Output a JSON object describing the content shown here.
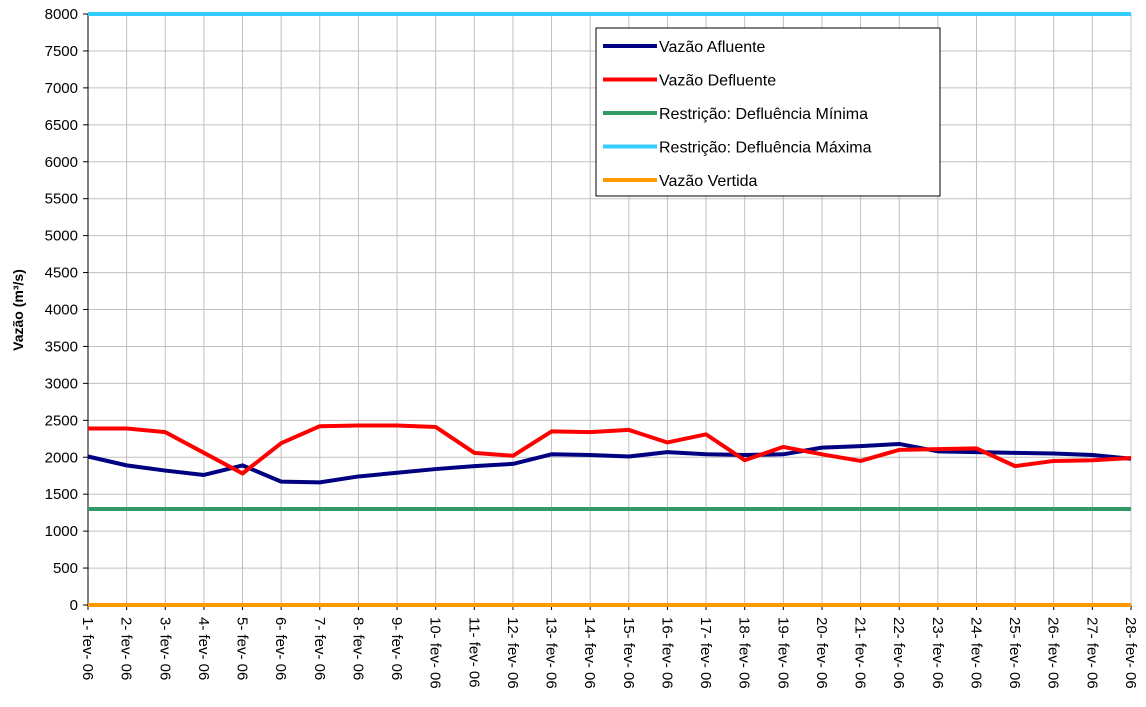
{
  "chart_data": {
    "type": "line",
    "title": "",
    "xlabel": "",
    "ylabel": "Vazão (m³/s)",
    "ylim": [
      0,
      8000
    ],
    "yticks": [
      0,
      500,
      1000,
      1500,
      2000,
      2500,
      3000,
      3500,
      4000,
      4500,
      5000,
      5500,
      6000,
      6500,
      7000,
      7500,
      8000
    ],
    "grid": true,
    "legend_position": "top-right",
    "categories": [
      "1- fev- 06",
      "2- fev- 06",
      "3- fev- 06",
      "4- fev- 06",
      "5- fev- 06",
      "6- fev- 06",
      "7- fev- 06",
      "8- fev- 06",
      "9- fev- 06",
      "10- fev- 06",
      "11- fev- 06",
      "12- fev- 06",
      "13- fev- 06",
      "14- fev- 06",
      "15- fev- 06",
      "16- fev- 06",
      "17- fev- 06",
      "18- fev- 06",
      "19- fev- 06",
      "20- fev- 06",
      "21- fev- 06",
      "22- fev- 06",
      "23- fev- 06",
      "24- fev- 06",
      "25- fev- 06",
      "26- fev- 06",
      "27- fev- 06",
      "28- fev- 06"
    ],
    "series": [
      {
        "name": "Vazão Afluente",
        "color": "#000080",
        "values": [
          2010,
          1890,
          1820,
          1760,
          1890,
          1670,
          1660,
          1740,
          1790,
          1840,
          1880,
          1910,
          2040,
          2030,
          2010,
          2070,
          2040,
          2030,
          2040,
          2130,
          2150,
          2180,
          2080,
          2070,
          2060,
          2050,
          2030,
          1980
        ]
      },
      {
        "name": "Vazão Defluente",
        "color": "#ff0000",
        "values": [
          2390,
          2390,
          2340,
          2060,
          1780,
          2190,
          2420,
          2430,
          2430,
          2410,
          2060,
          2020,
          2350,
          2340,
          2370,
          2200,
          2310,
          1960,
          2140,
          2040,
          1950,
          2100,
          2110,
          2120,
          1880,
          1950,
          1960,
          1990
        ]
      },
      {
        "name": "Restrição: Defluência Mínima",
        "color": "#339966",
        "values": [
          1300,
          1300,
          1300,
          1300,
          1300,
          1300,
          1300,
          1300,
          1300,
          1300,
          1300,
          1300,
          1300,
          1300,
          1300,
          1300,
          1300,
          1300,
          1300,
          1300,
          1300,
          1300,
          1300,
          1300,
          1300,
          1300,
          1300,
          1300
        ]
      },
      {
        "name": "Restrição: Defluência Máxima",
        "color": "#33ccff",
        "values": [
          8000,
          8000,
          8000,
          8000,
          8000,
          8000,
          8000,
          8000,
          8000,
          8000,
          8000,
          8000,
          8000,
          8000,
          8000,
          8000,
          8000,
          8000,
          8000,
          8000,
          8000,
          8000,
          8000,
          8000,
          8000,
          8000,
          8000,
          8000
        ]
      },
      {
        "name": "Vazão Vertida",
        "color": "#ff9900",
        "values": [
          0,
          0,
          0,
          0,
          0,
          0,
          0,
          0,
          0,
          0,
          0,
          0,
          0,
          0,
          0,
          0,
          0,
          0,
          0,
          0,
          0,
          0,
          0,
          0,
          0,
          0,
          0,
          0
        ]
      }
    ]
  }
}
